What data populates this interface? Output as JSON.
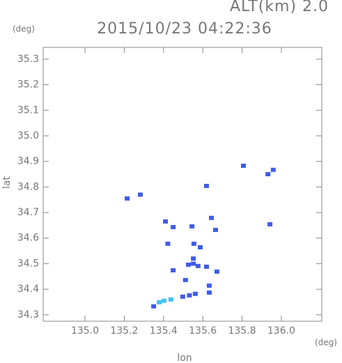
{
  "chart_data": {
    "type": "scatter",
    "title": "2015/10/23 04:22:36",
    "subtitle": "ALT(km) 2.0",
    "x_label": "lon",
    "y_label": "lat",
    "x_unit": "(deg)",
    "y_unit": "(deg)",
    "xlim": [
      134.787,
      136.206
    ],
    "ylim": [
      34.275,
      35.346
    ],
    "xticks": [
      {
        "value": 135,
        "label": "135.0"
      },
      135.2,
      135.4,
      135.6,
      135.8,
      {
        "value": 136,
        "label": "136.0"
      }
    ],
    "yticks": [
      34.3,
      34.4,
      34.5,
      34.6,
      34.7,
      34.8,
      34.9,
      {
        "value": 35,
        "label": "35.0"
      },
      35.1,
      35.2,
      35.3
    ],
    "series": [
      {
        "color": "#3f5ce6",
        "x": [
          135.805,
          135.957,
          135.93,
          135.617,
          135.213,
          135.28,
          135.94,
          135.408,
          135.447,
          135.543,
          135.642,
          135.663,
          135.553,
          135.42,
          135.585,
          135.55,
          135.55,
          135.525,
          135.574,
          135.67,
          135.617,
          135.447,
          135.51,
          135.631,
          135.631,
          135.56,
          135.53,
          135.496,
          135.348
        ],
        "y": [
          34.883,
          34.867,
          34.85,
          34.804,
          34.755,
          34.77,
          34.654,
          34.665,
          34.643,
          34.646,
          34.679,
          34.632,
          34.578,
          34.578,
          34.564,
          34.52,
          34.5,
          34.496,
          34.491,
          34.469,
          34.488,
          34.474,
          34.436,
          34.414,
          34.387,
          34.382,
          34.376,
          34.371,
          34.333
        ]
      },
      {
        "color": "#3fc3f5",
        "x": [
          135.436,
          135.4,
          135.376
        ],
        "y": [
          34.36,
          34.355,
          34.349
        ]
      }
    ]
  }
}
